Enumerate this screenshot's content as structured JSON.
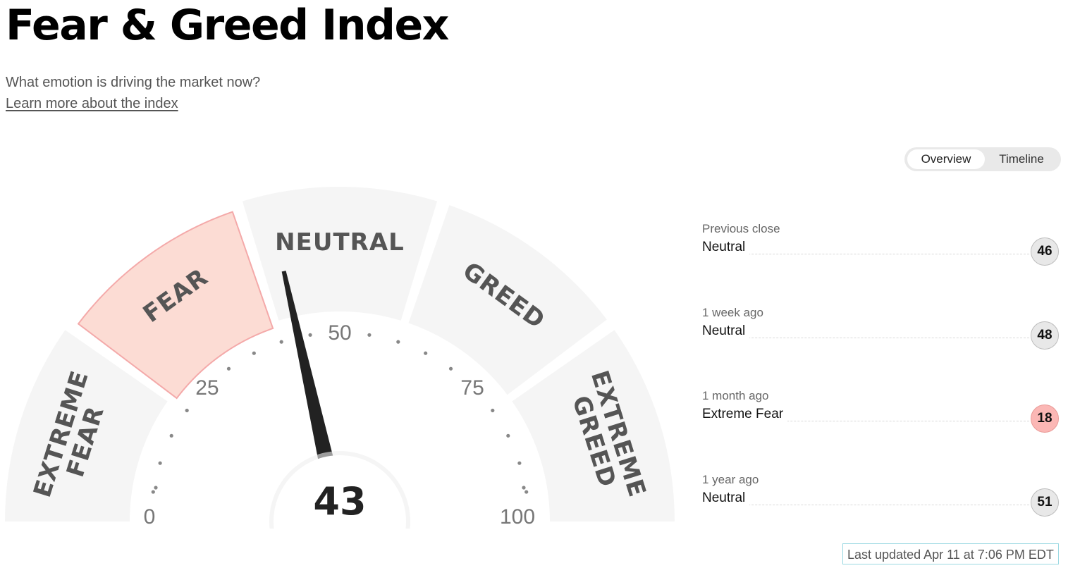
{
  "page": {
    "title": "Fear & Greed Index",
    "subtitle": "What emotion is driving the market now?",
    "learn_more": "Learn more about the index"
  },
  "tabs": {
    "overview": "Overview",
    "timeline": "Timeline",
    "active": "overview"
  },
  "gauge": {
    "value": 43,
    "min": 0,
    "max": 100,
    "active_segment": "fear",
    "segments": [
      {
        "key": "extreme_fear",
        "lines": [
          "EXTREME",
          "FEAR"
        ]
      },
      {
        "key": "fear",
        "lines": [
          "FEAR"
        ]
      },
      {
        "key": "neutral",
        "lines": [
          "NEUTRAL"
        ]
      },
      {
        "key": "greed",
        "lines": [
          "GREED"
        ]
      },
      {
        "key": "extreme_greed",
        "lines": [
          "EXTREME",
          "GREED"
        ]
      }
    ],
    "tick_labels": [
      "0",
      "25",
      "50",
      "75",
      "100"
    ],
    "colors": {
      "segment": "#f5f5f5",
      "active_fill": "#fcdcd4",
      "active_stroke": "#f4a9a9",
      "label": "#555555",
      "needle": "#222222"
    }
  },
  "history": [
    {
      "period": "Previous close",
      "rating": "Neutral",
      "value": "46",
      "tone": "neutral"
    },
    {
      "period": "1 week ago",
      "rating": "Neutral",
      "value": "48",
      "tone": "neutral"
    },
    {
      "period": "1 month ago",
      "rating": "Extreme Fear",
      "value": "18",
      "tone": "fear"
    },
    {
      "period": "1 year ago",
      "rating": "Neutral",
      "value": "51",
      "tone": "neutral"
    }
  ],
  "last_updated": "Last updated Apr 11 at 7:06 PM EDT"
}
